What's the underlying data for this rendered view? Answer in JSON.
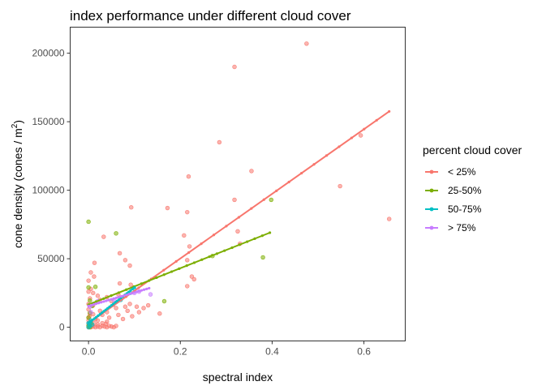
{
  "chart_data": {
    "type": "scatter",
    "title": "index performance under different cloud cover",
    "xlabel": "spectral index",
    "ylabel_main": "cone density (cones / m",
    "ylabel_sup": "2",
    "ylabel_close": ")",
    "xlim": [
      -0.04,
      0.69
    ],
    "ylim": [
      -10000,
      219000
    ],
    "xticks": [
      {
        "value": 0.0,
        "label": "0.0"
      },
      {
        "value": 0.2,
        "label": "0.2"
      },
      {
        "value": 0.4,
        "label": "0.4"
      },
      {
        "value": 0.6,
        "label": "0.6"
      }
    ],
    "yticks": [
      {
        "value": 0,
        "label": "0"
      },
      {
        "value": 50000,
        "label": "50000"
      },
      {
        "value": 100000,
        "label": "100000"
      },
      {
        "value": 150000,
        "label": "150000"
      },
      {
        "value": 200000,
        "label": "200000"
      }
    ],
    "grid": false,
    "legend": {
      "title": "percent cloud cover",
      "position": "right"
    },
    "series": [
      {
        "name": "< 25%",
        "color": "#F8766D",
        "fit": {
          "x": [
            0.0,
            0.655
          ],
          "y": [
            3000,
            157500
          ]
        },
        "points": [
          [
            0.475,
            207000
          ],
          [
            0.318,
            190000
          ],
          [
            0.285,
            135000
          ],
          [
            0.593,
            140000
          ],
          [
            0.218,
            110000
          ],
          [
            0.355,
            114000
          ],
          [
            0.548,
            103000
          ],
          [
            0.318,
            93000
          ],
          [
            0.655,
            79000
          ],
          [
            0.093,
            87500
          ],
          [
            0.172,
            87000
          ],
          [
            0.215,
            84000
          ],
          [
            0.325,
            70000
          ],
          [
            0.033,
            66000
          ],
          [
            0.208,
            67000
          ],
          [
            0.33,
            61000
          ],
          [
            0.22,
            59000
          ],
          [
            0.068,
            54000
          ],
          [
            0.08,
            49000
          ],
          [
            0.215,
            49000
          ],
          [
            0.013,
            47000
          ],
          [
            0.09,
            45000
          ],
          [
            0.005,
            40000
          ],
          [
            0.012,
            37000
          ],
          [
            0.225,
            37000
          ],
          [
            0.23,
            35000
          ],
          [
            0.0,
            34000
          ],
          [
            0.068,
            32000
          ],
          [
            0.092,
            31000
          ],
          [
            0.215,
            30000
          ],
          [
            0.005,
            28000
          ],
          [
            0.0,
            26000
          ],
          [
            0.01,
            25000
          ],
          [
            0.065,
            24000
          ],
          [
            0.02,
            23000
          ],
          [
            0.04,
            22000
          ],
          [
            0.003,
            21000
          ],
          [
            0.025,
            20000
          ],
          [
            0.05,
            19000
          ],
          [
            0.09,
            17000
          ],
          [
            0.0,
            17000
          ],
          [
            0.01,
            16000
          ],
          [
            0.13,
            16000
          ],
          [
            0.08,
            15000
          ],
          [
            0.105,
            15000
          ],
          [
            0.12,
            14000
          ],
          [
            0.06,
            14000
          ],
          [
            0.0,
            13000
          ],
          [
            0.025,
            12000
          ],
          [
            0.085,
            12000
          ],
          [
            0.04,
            11000
          ],
          [
            0.11,
            11000
          ],
          [
            0.003,
            10000
          ],
          [
            0.155,
            10000
          ],
          [
            0.065,
            9000
          ],
          [
            0.03,
            9000
          ],
          [
            0.095,
            8000
          ],
          [
            0.0,
            7000
          ],
          [
            0.045,
            7000
          ],
          [
            0.015,
            6000
          ],
          [
            0.075,
            6000
          ],
          [
            0.0,
            5000
          ],
          [
            0.02,
            5000
          ],
          [
            0.005,
            4000
          ],
          [
            0.04,
            4000
          ],
          [
            0.0,
            3000
          ],
          [
            0.012,
            3000
          ],
          [
            0.03,
            3000
          ],
          [
            0.003,
            2000
          ],
          [
            0.02,
            2000
          ],
          [
            0.0,
            1500
          ],
          [
            0.008,
            1500
          ],
          [
            0.03,
            1000
          ],
          [
            0.045,
            1000
          ],
          [
            0.0,
            500
          ],
          [
            0.01,
            500
          ],
          [
            0.02,
            500
          ],
          [
            0.035,
            500
          ],
          [
            0.05,
            500
          ],
          [
            0.0,
            0
          ],
          [
            0.005,
            0
          ],
          [
            0.015,
            0
          ],
          [
            0.025,
            0
          ],
          [
            0.04,
            0
          ],
          [
            0.055,
            0
          ],
          [
            0.06,
            1000
          ],
          [
            0.038,
            2500
          ],
          [
            0.002,
            8000
          ],
          [
            0.01,
            9500
          ]
        ]
      },
      {
        "name": "25-50%",
        "color": "#7CAE00",
        "fit": {
          "x": [
            0.0,
            0.395
          ],
          "y": [
            16500,
            69000
          ]
        },
        "points": [
          [
            0.0,
            77000
          ],
          [
            0.398,
            93000
          ],
          [
            0.06,
            68500
          ],
          [
            0.38,
            51000
          ],
          [
            0.27,
            52000
          ],
          [
            0.0,
            29000
          ],
          [
            0.015,
            29500
          ],
          [
            0.165,
            19000
          ],
          [
            0.003,
            19500
          ],
          [
            0.008,
            15500
          ],
          [
            0.003,
            10500
          ],
          [
            0.0,
            7000
          ],
          [
            0.005,
            3000
          ],
          [
            0.0,
            1000
          ],
          [
            0.003,
            0
          ]
        ]
      },
      {
        "name": "50-75%",
        "color": "#00BFC4",
        "fit": {
          "x": [
            0.0,
            0.1
          ],
          "y": [
            3000,
            29000
          ]
        },
        "points": [
          [
            0.0,
            3000
          ],
          [
            0.003,
            1000
          ],
          [
            0.008,
            2000
          ],
          [
            0.0,
            0
          ],
          [
            0.005,
            5000
          ],
          [
            0.09,
            25000
          ],
          [
            0.1,
            28000
          ],
          [
            0.07,
            20000
          ]
        ]
      },
      {
        "name": "> 75%",
        "color": "#C77CFF",
        "fit": {
          "x": [
            0.0,
            0.132
          ],
          "y": [
            15500,
            28500
          ]
        },
        "points": [
          [
            0.01,
            17000
          ],
          [
            0.02,
            19000
          ],
          [
            0.003,
            15000
          ],
          [
            0.055,
            20000
          ],
          [
            0.1,
            25000
          ],
          [
            0.11,
            26000
          ],
          [
            0.135,
            24000
          ],
          [
            0.005,
            11000
          ]
        ]
      }
    ]
  }
}
